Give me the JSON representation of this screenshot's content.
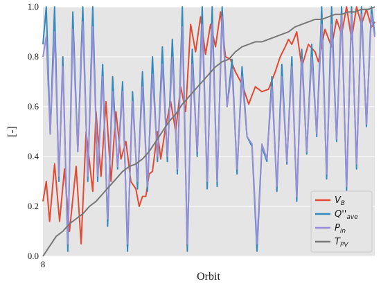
{
  "chart_data": {
    "type": "line",
    "title": "",
    "xlabel": "Orbit",
    "ylabel": "[-]",
    "xlim": [
      8,
      9
    ],
    "ylim": [
      0,
      1
    ],
    "x_ticks": [
      8
    ],
    "x_tick_labels": [
      "8"
    ],
    "y_ticks": [
      0.0,
      0.2,
      0.4,
      0.6,
      0.8,
      1.0
    ],
    "y_tick_labels": [
      "0.0",
      "0.2",
      "0.4",
      "0.6",
      "0.8",
      "1.0"
    ],
    "grid": true,
    "background": "#e5e5e5",
    "legend_position": "lower-right",
    "series": [
      {
        "name": "V_B",
        "legend_main": "V",
        "legend_sub": "B",
        "color": "#e24a33",
        "x": [
          8.0,
          8.01,
          8.02,
          8.035,
          8.05,
          8.065,
          8.08,
          8.1,
          8.115,
          8.13,
          8.15,
          8.16,
          8.175,
          8.19,
          8.205,
          8.22,
          8.235,
          8.25,
          8.265,
          8.28,
          8.29,
          8.3,
          8.31,
          8.32,
          8.33,
          8.345,
          8.355,
          8.37,
          8.385,
          8.4,
          8.415,
          8.43,
          8.445,
          8.46,
          8.475,
          8.49,
          8.505,
          8.52,
          8.535,
          8.55,
          8.565,
          8.58,
          8.6,
          8.62,
          8.64,
          8.66,
          8.68,
          8.7,
          8.715,
          8.73,
          8.74,
          8.75,
          8.765,
          8.78,
          8.8,
          8.82,
          8.83,
          8.85,
          8.87,
          8.885,
          8.9,
          8.915,
          8.93,
          8.945,
          8.96,
          8.975,
          8.99,
          9.0
        ],
        "y": [
          0.22,
          0.3,
          0.14,
          0.37,
          0.14,
          0.35,
          0.1,
          0.36,
          0.05,
          0.5,
          0.26,
          0.58,
          0.32,
          0.62,
          0.3,
          0.58,
          0.39,
          0.46,
          0.3,
          0.27,
          0.2,
          0.24,
          0.24,
          0.33,
          0.34,
          0.5,
          0.39,
          0.52,
          0.62,
          0.5,
          0.68,
          0.58,
          0.93,
          0.82,
          0.96,
          0.81,
          0.93,
          0.84,
          0.98,
          0.8,
          0.79,
          0.74,
          0.69,
          0.61,
          0.68,
          0.66,
          0.67,
          0.74,
          0.8,
          0.84,
          0.87,
          0.85,
          0.9,
          0.76,
          0.85,
          0.82,
          0.78,
          0.91,
          0.84,
          0.95,
          0.89,
          1.0,
          0.87,
          1.0,
          0.93,
          0.99,
          0.92,
          0.94
        ]
      },
      {
        "name": "Q''_ave",
        "legend_main": "Q''",
        "legend_sub": "ave",
        "color": "#348abd",
        "x": [
          8.0,
          8.01,
          8.022,
          8.035,
          8.048,
          8.06,
          8.075,
          8.09,
          8.105,
          8.12,
          8.135,
          8.15,
          8.165,
          8.18,
          8.195,
          8.21,
          8.225,
          8.24,
          8.255,
          8.27,
          8.285,
          8.3,
          8.315,
          8.33,
          8.345,
          8.36,
          8.375,
          8.39,
          8.405,
          8.42,
          8.435,
          8.45,
          8.465,
          8.48,
          8.495,
          8.51,
          8.525,
          8.54,
          8.555,
          8.57,
          8.585,
          8.6,
          8.615,
          8.63,
          8.645,
          8.66,
          8.675,
          8.69,
          8.705,
          8.72,
          8.735,
          8.75,
          8.765,
          8.78,
          8.795,
          8.81,
          8.825,
          8.84,
          8.855,
          8.87,
          8.885,
          8.9,
          8.915,
          8.93,
          8.945,
          8.96,
          8.975,
          8.99,
          9.0
        ],
        "y": [
          0.85,
          1.0,
          0.49,
          1.0,
          0.3,
          0.8,
          0.02,
          0.98,
          0.42,
          1.0,
          0.3,
          1.0,
          0.3,
          0.77,
          0.12,
          0.72,
          0.35,
          0.7,
          0.02,
          0.66,
          0.27,
          0.74,
          0.26,
          0.8,
          0.38,
          0.84,
          0.38,
          0.87,
          0.33,
          1.0,
          0.02,
          0.83,
          0.4,
          1.0,
          0.27,
          1.0,
          0.28,
          1.0,
          0.6,
          0.79,
          0.33,
          0.76,
          0.48,
          0.44,
          0.02,
          0.44,
          0.38,
          0.72,
          0.26,
          0.77,
          0.37,
          0.8,
          0.22,
          0.83,
          0.41,
          0.85,
          0.48,
          1.0,
          0.31,
          1.0,
          0.46,
          1.0,
          0.26,
          1.0,
          0.35,
          1.0,
          0.52,
          1.0,
          0.89
        ]
      },
      {
        "name": "P_in",
        "legend_main": "P",
        "legend_sub": "in",
        "color": "#988ed5",
        "x": [
          8.0,
          8.01,
          8.022,
          8.035,
          8.048,
          8.06,
          8.075,
          8.09,
          8.105,
          8.12,
          8.135,
          8.15,
          8.165,
          8.18,
          8.195,
          8.21,
          8.225,
          8.24,
          8.255,
          8.27,
          8.285,
          8.3,
          8.315,
          8.33,
          8.345,
          8.36,
          8.375,
          8.39,
          8.405,
          8.42,
          8.435,
          8.45,
          8.465,
          8.48,
          8.495,
          8.51,
          8.525,
          8.54,
          8.555,
          8.57,
          8.585,
          8.6,
          8.615,
          8.63,
          8.645,
          8.66,
          8.675,
          8.69,
          8.705,
          8.72,
          8.735,
          8.75,
          8.765,
          8.78,
          8.795,
          8.81,
          8.825,
          8.84,
          8.855,
          8.87,
          8.885,
          8.9,
          8.915,
          8.93,
          8.945,
          8.96,
          8.975,
          8.99,
          9.0
        ],
        "y": [
          0.8,
          0.88,
          0.49,
          0.9,
          0.32,
          0.76,
          0.05,
          0.91,
          0.42,
          0.94,
          0.32,
          0.92,
          0.32,
          0.72,
          0.15,
          0.66,
          0.36,
          0.66,
          0.05,
          0.62,
          0.3,
          0.68,
          0.28,
          0.73,
          0.4,
          0.77,
          0.4,
          0.8,
          0.35,
          0.92,
          0.05,
          0.77,
          0.42,
          0.93,
          0.3,
          0.93,
          0.3,
          0.96,
          0.6,
          0.75,
          0.35,
          0.72,
          0.48,
          0.45,
          0.05,
          0.45,
          0.39,
          0.68,
          0.28,
          0.72,
          0.38,
          0.76,
          0.24,
          0.79,
          0.42,
          0.8,
          0.49,
          0.93,
          0.33,
          0.93,
          0.47,
          0.97,
          0.28,
          0.97,
          0.37,
          0.97,
          0.53,
          0.97,
          0.88
        ]
      },
      {
        "name": "T_PV",
        "legend_main": "T",
        "legend_sub": "PV",
        "color": "#777777",
        "x": [
          8.0,
          8.02,
          8.04,
          8.06,
          8.08,
          8.1,
          8.12,
          8.14,
          8.16,
          8.18,
          8.2,
          8.22,
          8.24,
          8.26,
          8.28,
          8.3,
          8.32,
          8.34,
          8.36,
          8.38,
          8.4,
          8.42,
          8.44,
          8.46,
          8.48,
          8.5,
          8.52,
          8.54,
          8.56,
          8.58,
          8.6,
          8.62,
          8.64,
          8.66,
          8.68,
          8.7,
          8.72,
          8.74,
          8.76,
          8.78,
          8.8,
          8.82,
          8.84,
          8.86,
          8.88,
          8.9,
          8.92,
          8.94,
          8.96,
          8.98,
          9.0
        ],
        "y": [
          0.0,
          0.04,
          0.08,
          0.1,
          0.13,
          0.15,
          0.17,
          0.2,
          0.22,
          0.25,
          0.28,
          0.31,
          0.34,
          0.36,
          0.37,
          0.39,
          0.42,
          0.46,
          0.5,
          0.54,
          0.57,
          0.61,
          0.64,
          0.67,
          0.7,
          0.73,
          0.76,
          0.78,
          0.79,
          0.82,
          0.84,
          0.85,
          0.86,
          0.86,
          0.87,
          0.88,
          0.89,
          0.9,
          0.92,
          0.93,
          0.94,
          0.95,
          0.95,
          0.96,
          0.97,
          0.97,
          0.98,
          0.98,
          0.99,
          0.99,
          1.0
        ]
      }
    ]
  }
}
